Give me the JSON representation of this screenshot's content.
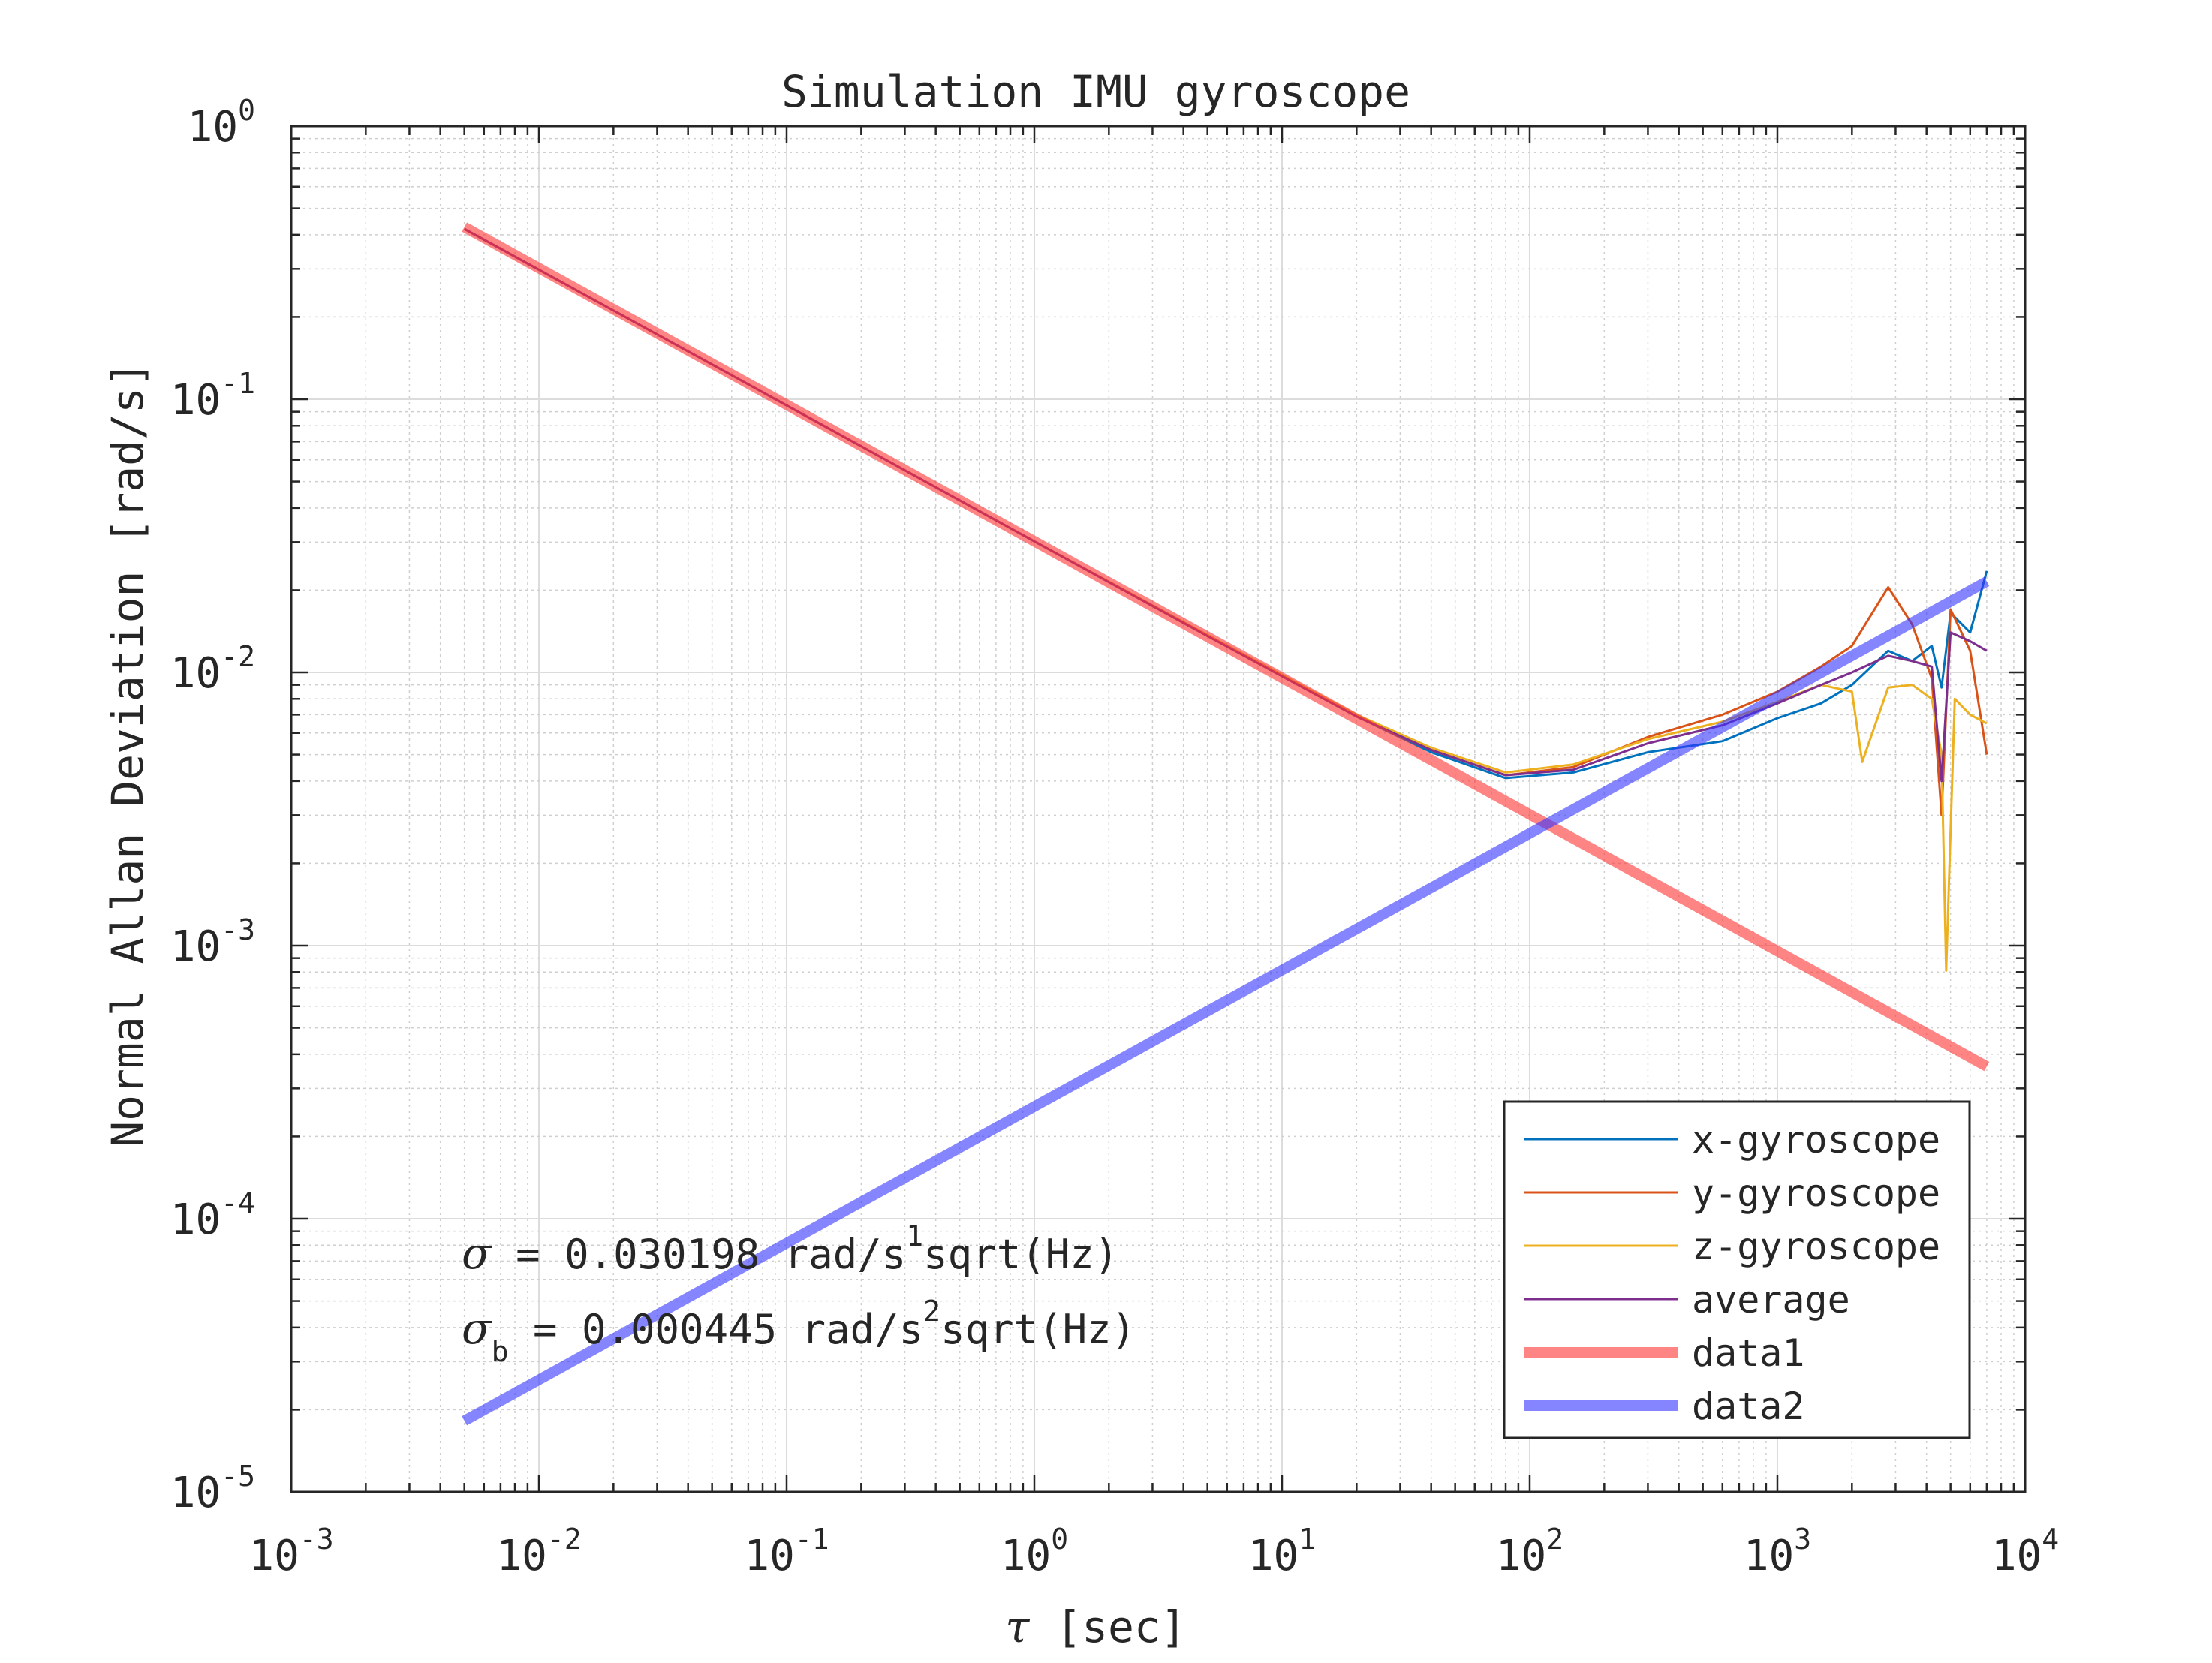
{
  "chart_data": {
    "type": "line",
    "title": "Simulation IMU gyroscope",
    "xlabel_symbol": "τ",
    "xlabel_text": " [sec]",
    "ylabel": "Normal Allan Deviation [rad/s]",
    "xscale": "log",
    "yscale": "log",
    "xlim": [
      0.001,
      10000
    ],
    "ylim": [
      1e-05,
      1
    ],
    "grid": true,
    "minor_grid": true,
    "legend_placement": "bottom-right",
    "x_ticks": [
      {
        "base": "10",
        "exp": "-3",
        "value": 0.001
      },
      {
        "base": "10",
        "exp": "-2",
        "value": 0.01
      },
      {
        "base": "10",
        "exp": "-1",
        "value": 0.1
      },
      {
        "base": "10",
        "exp": "0",
        "value": 1
      },
      {
        "base": "10",
        "exp": "1",
        "value": 10
      },
      {
        "base": "10",
        "exp": "2",
        "value": 100
      },
      {
        "base": "10",
        "exp": "3",
        "value": 1000
      },
      {
        "base": "10",
        "exp": "4",
        "value": 10000
      }
    ],
    "y_ticks": [
      {
        "base": "10",
        "exp": "0",
        "value": 1
      },
      {
        "base": "10",
        "exp": "-1",
        "value": 0.1
      },
      {
        "base": "10",
        "exp": "-2",
        "value": 0.01
      },
      {
        "base": "10",
        "exp": "-3",
        "value": 0.001
      },
      {
        "base": "10",
        "exp": "-4",
        "value": 0.0001
      },
      {
        "base": "10",
        "exp": "-5",
        "value": 1e-05
      }
    ],
    "series": [
      {
        "name": "x-gyroscope",
        "color": "#0072BD",
        "style": "thin",
        "x": [
          0.005,
          0.05,
          1,
          5,
          20,
          40,
          80,
          150,
          300,
          600,
          1000,
          1500,
          2000,
          2800,
          3500,
          4200,
          4600,
          5000,
          6000,
          7000
        ],
        "y": [
          0.42,
          0.134,
          0.0302,
          0.0136,
          0.0069,
          0.0051,
          0.0041,
          0.0043,
          0.0051,
          0.0056,
          0.0068,
          0.0077,
          0.009,
          0.012,
          0.011,
          0.0125,
          0.0088,
          0.0165,
          0.014,
          0.0235
        ]
      },
      {
        "name": "y-gyroscope",
        "color": "#D95319",
        "style": "thin",
        "x": [
          0.005,
          0.05,
          1,
          5,
          20,
          40,
          80,
          150,
          300,
          600,
          1000,
          1500,
          2000,
          2800,
          3500,
          4200,
          4600,
          5000,
          6000,
          7000
        ],
        "y": [
          0.42,
          0.134,
          0.0302,
          0.0136,
          0.0069,
          0.0052,
          0.0042,
          0.0045,
          0.0058,
          0.007,
          0.0085,
          0.0105,
          0.0125,
          0.0205,
          0.015,
          0.0095,
          0.003,
          0.017,
          0.012,
          0.005
        ]
      },
      {
        "name": "z-gyroscope",
        "color": "#EDB120",
        "style": "thin",
        "x": [
          0.005,
          0.05,
          1,
          5,
          20,
          40,
          80,
          150,
          300,
          600,
          1000,
          1500,
          2000,
          2200,
          2800,
          3500,
          4200,
          4600,
          4800,
          5200,
          6000,
          7000
        ],
        "y": [
          0.42,
          0.134,
          0.0302,
          0.0137,
          0.007,
          0.0053,
          0.0043,
          0.0046,
          0.0057,
          0.0066,
          0.0078,
          0.009,
          0.0085,
          0.0047,
          0.0088,
          0.009,
          0.008,
          0.005,
          0.00081,
          0.008,
          0.007,
          0.0065
        ]
      },
      {
        "name": "average",
        "color": "#7E2F8E",
        "style": "thin",
        "x": [
          0.005,
          0.05,
          1,
          5,
          20,
          40,
          80,
          150,
          300,
          600,
          1000,
          1500,
          2000,
          2800,
          3500,
          4200,
          4600,
          5000,
          6000,
          7000
        ],
        "y": [
          0.42,
          0.134,
          0.0302,
          0.0136,
          0.0069,
          0.0052,
          0.0042,
          0.0044,
          0.0055,
          0.0064,
          0.0077,
          0.009,
          0.01,
          0.0115,
          0.011,
          0.0105,
          0.004,
          0.014,
          0.013,
          0.012
        ]
      },
      {
        "name": "data1",
        "color": "#FF3333",
        "opacity": 0.6,
        "style": "thick",
        "x": [
          0.005,
          7000
        ],
        "y": [
          0.4271,
          0.000361
        ]
      },
      {
        "name": "data2",
        "color": "#3333FF",
        "opacity": 0.6,
        "style": "thick",
        "x": [
          0.005,
          7000
        ],
        "y": [
          1.82e-05,
          0.02153
        ]
      }
    ],
    "annotations": [
      {
        "symbol": "σ",
        "subscript": "",
        "text": " = 0.030198 rad/s",
        "superscript": "1",
        "tail": "sqrt(Hz)"
      },
      {
        "symbol": "σ",
        "subscript": "b",
        "text": " = 0.000445 rad/s",
        "superscript": "2",
        "tail": "sqrt(Hz)"
      }
    ]
  }
}
